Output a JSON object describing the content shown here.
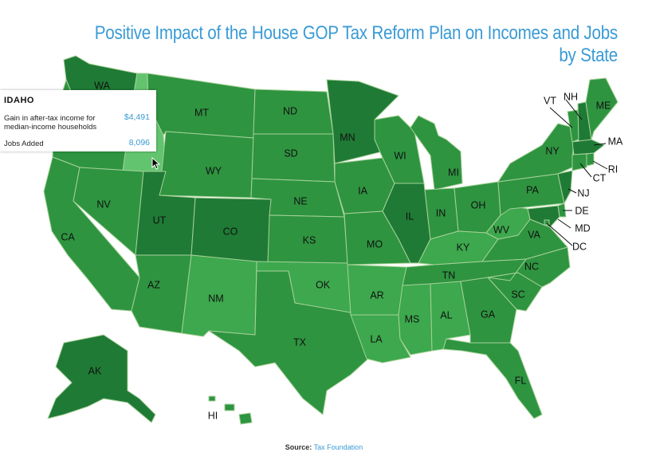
{
  "title": "Positive Impact of the House GOP Tax Reform Plan on Incomes and Jobs by State",
  "colors": {
    "dark": "#1f7a35",
    "mid": "#2e9440",
    "light": "#3da84d",
    "highlight": "#62c46e",
    "title": "#3a9bd5"
  },
  "states": {
    "WA": {
      "label": "WA",
      "shade": "dark"
    },
    "OR": {
      "label": "",
      "shade": "mid"
    },
    "CA": {
      "label": "CA",
      "shade": "mid"
    },
    "ID": {
      "label": "",
      "shade": "highlight"
    },
    "NV": {
      "label": "NV",
      "shade": "mid"
    },
    "MT": {
      "label": "MT",
      "shade": "mid"
    },
    "WY": {
      "label": "WY",
      "shade": "mid"
    },
    "UT": {
      "label": "UT",
      "shade": "dark"
    },
    "AZ": {
      "label": "AZ",
      "shade": "mid"
    },
    "CO": {
      "label": "CO",
      "shade": "dark"
    },
    "NM": {
      "label": "NM",
      "shade": "light"
    },
    "ND": {
      "label": "ND",
      "shade": "mid"
    },
    "SD": {
      "label": "SD",
      "shade": "mid"
    },
    "NE": {
      "label": "NE",
      "shade": "mid"
    },
    "KS": {
      "label": "KS",
      "shade": "mid"
    },
    "OK": {
      "label": "OK",
      "shade": "light"
    },
    "TX": {
      "label": "TX",
      "shade": "mid"
    },
    "MN": {
      "label": "MN",
      "shade": "dark"
    },
    "IA": {
      "label": "IA",
      "shade": "mid"
    },
    "MO": {
      "label": "MO",
      "shade": "mid"
    },
    "AR": {
      "label": "AR",
      "shade": "light"
    },
    "LA": {
      "label": "LA",
      "shade": "light"
    },
    "WI": {
      "label": "WI",
      "shade": "mid"
    },
    "IL": {
      "label": "IL",
      "shade": "dark"
    },
    "MI": {
      "label": "MI",
      "shade": "mid"
    },
    "IN": {
      "label": "IN",
      "shade": "mid"
    },
    "OH": {
      "label": "OH",
      "shade": "mid"
    },
    "KY": {
      "label": "KY",
      "shade": "light"
    },
    "TN": {
      "label": "TN",
      "shade": "mid"
    },
    "MS": {
      "label": "MS",
      "shade": "light"
    },
    "AL": {
      "label": "AL",
      "shade": "light"
    },
    "GA": {
      "label": "GA",
      "shade": "mid"
    },
    "FL": {
      "label": "FL",
      "shade": "mid"
    },
    "SC": {
      "label": "SC",
      "shade": "mid"
    },
    "NC": {
      "label": "NC",
      "shade": "mid"
    },
    "VA": {
      "label": "VA",
      "shade": "mid"
    },
    "WV": {
      "label": "WV",
      "shade": "light"
    },
    "PA": {
      "label": "PA",
      "shade": "mid"
    },
    "NY": {
      "label": "NY",
      "shade": "mid"
    },
    "VT": {
      "label": "VT",
      "shade": "mid"
    },
    "NH": {
      "label": "NH",
      "shade": "dark"
    },
    "ME": {
      "label": "ME",
      "shade": "mid"
    },
    "MA": {
      "label": "MA",
      "shade": "dark"
    },
    "RI": {
      "label": "RI",
      "shade": "mid"
    },
    "CT": {
      "label": "CT",
      "shade": "mid"
    },
    "NJ": {
      "label": "NJ",
      "shade": "dark"
    },
    "DE": {
      "label": "DE",
      "shade": "mid"
    },
    "MD": {
      "label": "MD",
      "shade": "dark"
    },
    "DC": {
      "label": "DC",
      "shade": "mid"
    },
    "AK": {
      "label": "AK",
      "shade": "dark"
    },
    "HI": {
      "label": "HI",
      "shade": "mid"
    }
  },
  "tooltip": {
    "state": "IDAHO",
    "income_label": "Gain in after-tax income for median-income households",
    "income_value": "$4,491",
    "jobs_label": "Jobs Added",
    "jobs_value": "8,096"
  },
  "source": {
    "label": "Source:",
    "name": "Tax Foundation"
  }
}
